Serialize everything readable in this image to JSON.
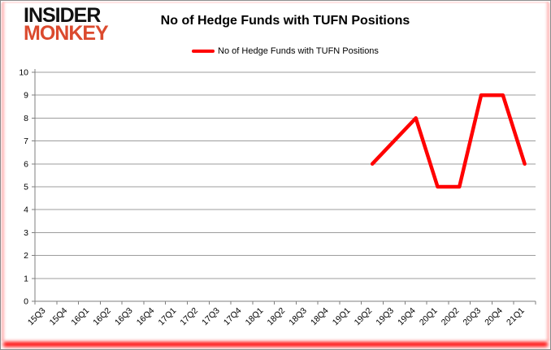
{
  "brand": {
    "line1": "INSIDER",
    "line2": "MONKEY",
    "line1_color": "#111111",
    "line2_color": "#db4a2e"
  },
  "header": {
    "title": "No of Hedge Funds with TUFN Positions"
  },
  "legend": {
    "label": "No of Hedge Funds with TUFN Positions",
    "swatch_color": "#ff0000"
  },
  "chart_data": {
    "type": "line",
    "title": "No of Hedge Funds with TUFN Positions",
    "categories": [
      "15Q3",
      "15Q4",
      "16Q1",
      "16Q2",
      "16Q3",
      "16Q4",
      "17Q1",
      "17Q2",
      "17Q3",
      "17Q4",
      "18Q1",
      "18Q2",
      "18Q3",
      "18Q4",
      "19Q1",
      "19Q2",
      "19Q3",
      "19Q4",
      "20Q1",
      "20Q2",
      "20Q3",
      "20Q4",
      "21Q1"
    ],
    "series": [
      {
        "name": "No of Hedge Funds with TUFN Positions",
        "color": "#ff0000",
        "values": [
          null,
          null,
          null,
          null,
          null,
          null,
          null,
          null,
          null,
          null,
          null,
          null,
          null,
          null,
          null,
          6,
          7,
          8,
          5,
          5,
          9,
          9,
          6
        ]
      }
    ],
    "xlabel": "",
    "ylabel": "",
    "ylim": [
      0,
      10
    ],
    "ytick_step": 1,
    "grid": true,
    "legend_position": "top",
    "gridline_color": "#9d9d9d",
    "axis_color": "#7f7f7f",
    "tick_label_color": "#000000"
  }
}
